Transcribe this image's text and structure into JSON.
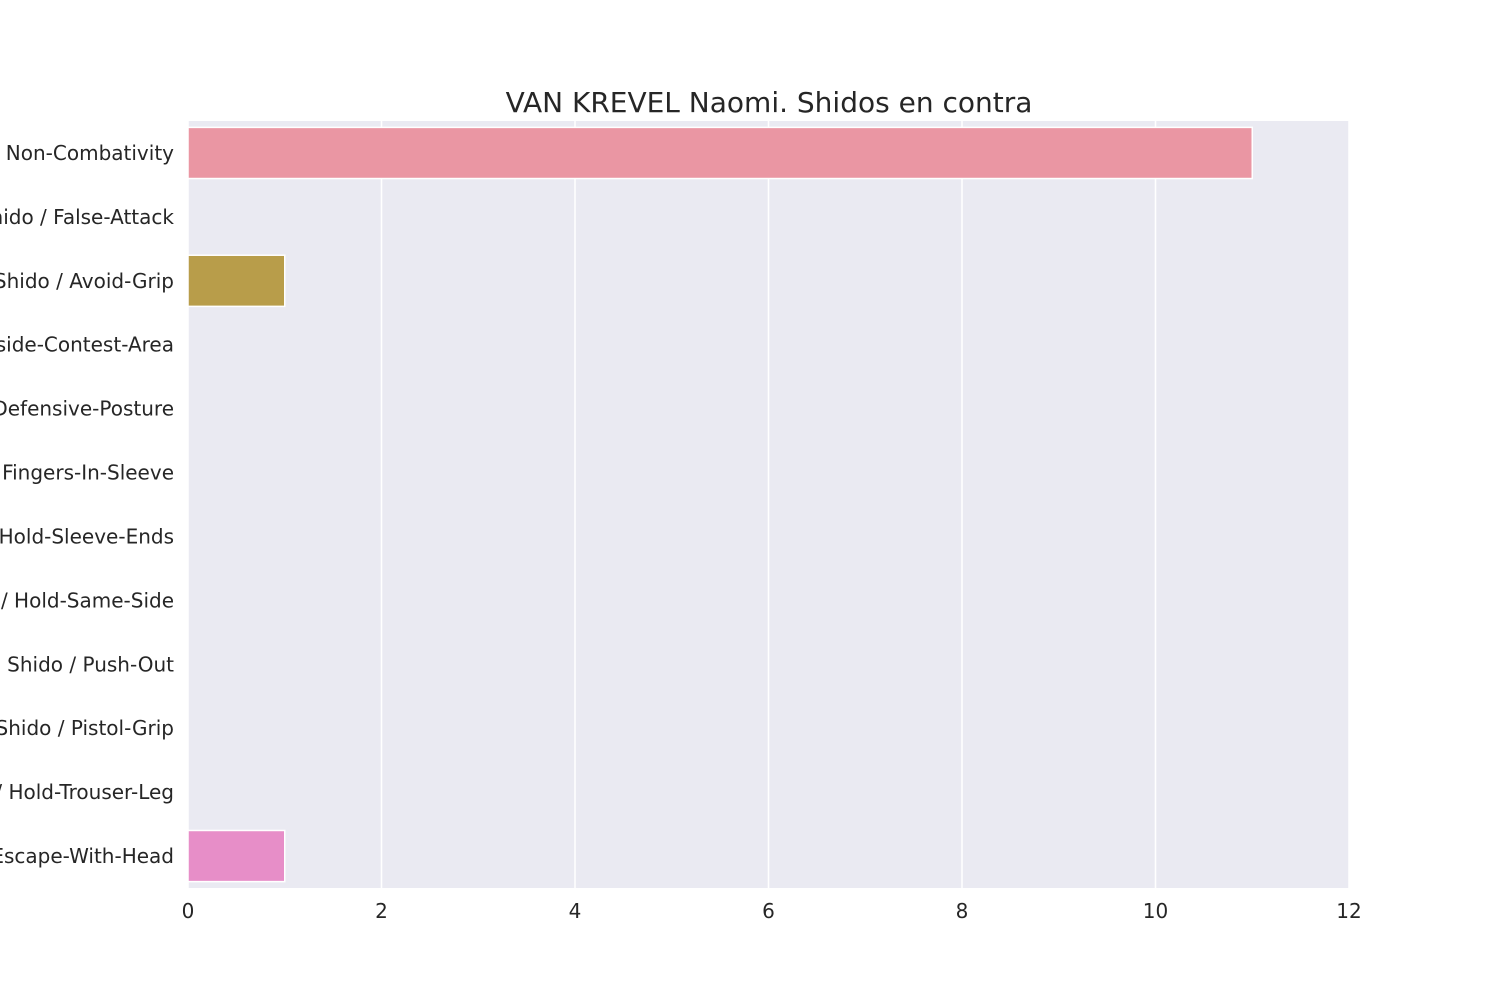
{
  "chart_data": {
    "type": "bar",
    "orientation": "horizontal",
    "title": "VAN KREVEL Naomi. Shidos en contra",
    "xlabel": "",
    "ylabel": "",
    "xlim": [
      0,
      12
    ],
    "x_ticks": [
      "0",
      "2",
      "4",
      "6",
      "8",
      "10",
      "12"
    ],
    "grid": true,
    "categories": [
      "Shido / Non-Combativity",
      "Shido / False-Attack",
      "Shido / Avoid-Grip",
      "Shido / Outside-Contest-Area",
      "Shido / Defensive-Posture",
      "Shido / Fingers-In-Sleeve",
      "Shido / Hold-Sleeve-Ends",
      "Shido / Hold-Same-Side",
      "Shido / Push-Out",
      "Shido / Pistol-Grip",
      "Shido / Hold-Trouser-Leg",
      "Shido / Escape-With-Head"
    ],
    "values": [
      11,
      0,
      1,
      0,
      0,
      0,
      0,
      0,
      0,
      0,
      0,
      1
    ],
    "colors": [
      "#ea96a3",
      "#de9a86",
      "#b89d4a",
      "#a3a64a",
      "#7fac4a",
      "#4fb080",
      "#4fae9a",
      "#50adac",
      "#56aac6",
      "#8aa2ea",
      "#c697ea",
      "#e78ec8"
    ]
  },
  "style": {
    "plot_background": "#eaeaf2",
    "grid_color": "#ffffff",
    "text_color": "#262626"
  }
}
